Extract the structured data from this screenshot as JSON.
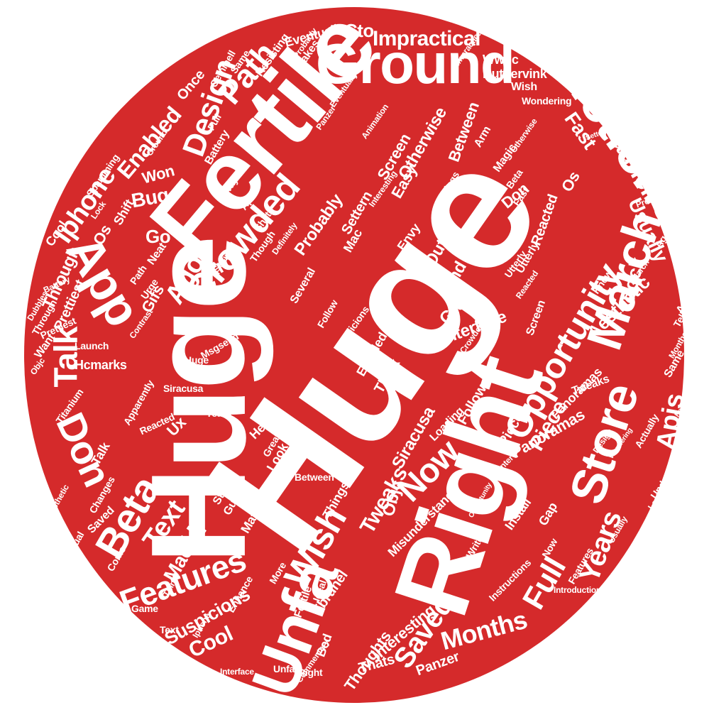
{
  "colors": {
    "background": "#ffffff",
    "disc": "#d52a2b",
    "text": "#ffffff"
  },
  "words": [
    "Huge",
    "Huge",
    "Fertile",
    "Right",
    "Ground",
    "Instructions",
    "March",
    "App",
    "Crowded",
    "Opportunity",
    "Store",
    "Unfa",
    "Design",
    "Path",
    "Talk",
    "Don",
    "Beta",
    "Features",
    "Iphone",
    "Launch",
    "Years",
    "Full",
    "Months",
    "Wish",
    "Saved",
    "Now",
    "Apis",
    "Text",
    "Mac",
    "Ui",
    "Tweaks",
    "Suspicions",
    "Cool",
    "Thoughts",
    "Ago",
    "Cto",
    "Impractical",
    "Enabled",
    "Won",
    "Bug",
    "Go",
    "Arm",
    "Probably",
    "Lock",
    "Usually",
    "Fast",
    "Interface",
    "Great",
    "Find",
    "Out",
    "Piece",
    "Panoramas",
    "Aesthetic",
    "Otherwise",
    "Screen",
    "Between",
    "Easy",
    "Settern",
    "Phone",
    "Reacted",
    "Utterly",
    "Shift",
    "Through",
    "Hcmarks",
    "Prettiest",
    "Gifs",
    "Msgsend",
    "Objc",
    "Siracusa",
    "Fbrunel",
    "Misunderstands",
    "Interesting",
    "Panzer",
    "Thats",
    "Gap",
    "Install",
    "Eventually",
    "Makes",
    "Resisting",
    "Same",
    "Gemmell",
    "Once",
    "Wwdc",
    "Rutgervink",
    "Wish",
    "Wondering",
    "Arm",
    "Animation",
    "Panzer",
    "Full",
    "Battery",
    "Magic",
    "Beta",
    "Fast",
    "Os",
    "Don",
    "Things",
    "Way",
    "Apis",
    "Shift",
    "Lock",
    "Neat",
    "Setting",
    "Though",
    "Definitely",
    "Envy",
    "Mac",
    "Cool",
    "Os",
    "Utterly",
    "Path",
    "Urge",
    "Several",
    "Follow",
    "Suspicions",
    "Think",
    "Enabled",
    "Huge",
    "Contrast",
    "Want",
    "Launch",
    "Objc",
    "Prettiest",
    "Through",
    "Battery",
    "Dubbles",
    "Titanium",
    "Apparently",
    "Reacted",
    "Ux",
    "Years",
    "Hey",
    "Great",
    "Look",
    "Though",
    "Store",
    "Guys",
    "Matt",
    "Between",
    "Things",
    "Talk",
    "Changes",
    "Saved",
    "Visual",
    "Aesthetic",
    "Come",
    "Think",
    "More",
    "Enhance",
    "Game",
    "Text",
    "Interface",
    "Commentary",
    "Fertile",
    "Bed",
    "Unfa",
    "Right",
    "Iphone",
    "Ideal",
    "Writes",
    "Introduction",
    "Instructions",
    "Now",
    "Features",
    "Msgsend",
    "Usually",
    "Update",
    "Legibility",
    "Center",
    "Opportunity",
    "Loading",
    "Follow",
    "Piece",
    "Tweaks",
    "Panoramas",
    "Actually",
    "Months",
    "Same",
    "Tells",
    "App",
    "Know",
    "March",
    "Ago",
    "Prettiest",
    "Setters",
    "Probably",
    "Impractical",
    "Spamming",
    "Ground",
    "Crowded",
    "Screen",
    "Interesting",
    "Wondering",
    "Eventually",
    "Design",
    "Hcmarks",
    "Otherwise",
    "Reacted",
    "Siracusa"
  ]
}
